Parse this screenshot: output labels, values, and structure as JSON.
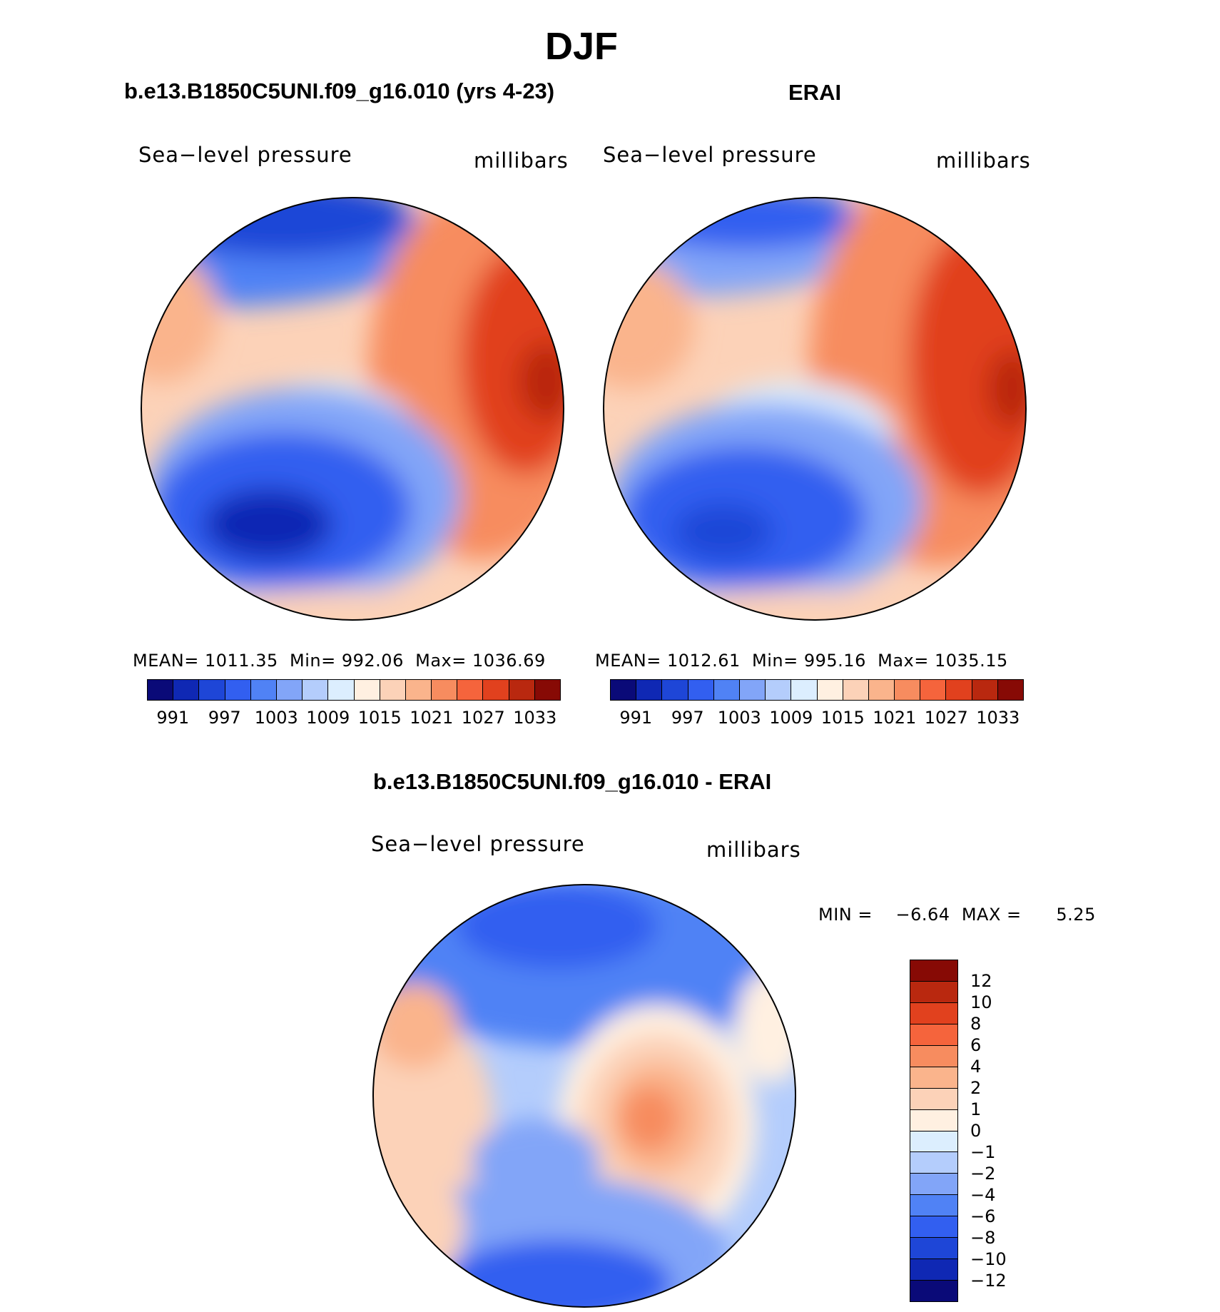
{
  "title": "DJF",
  "palette": [
    "#0a0a78",
    "#0f28b4",
    "#1e46d7",
    "#325ff0",
    "#5082f5",
    "#82a5f8",
    "#b4cdfc",
    "#dceefe",
    "#fff0e1",
    "#fcd2b8",
    "#fab48c",
    "#f78c5f",
    "#f5643c",
    "#e1411e",
    "#b9280f",
    "#870a05"
  ],
  "panels": [
    {
      "title": "b.e13.B1850C5UNI.f09_g16.010 (yrs 4-23)",
      "left_label": "Sea−level pressure",
      "right_label": "millibars",
      "stats": {
        "mean_label": "MEAN=",
        "mean": "1011.35",
        "min_label": "Min=",
        "min": "992.06",
        "max_label": "Max=",
        "max": "1036.69"
      }
    },
    {
      "title": "ERAI",
      "left_label": "Sea−level pressure",
      "right_label": "millibars",
      "stats": {
        "mean_label": "MEAN=",
        "mean": "1012.61",
        "min_label": "Min=",
        "min": "995.16",
        "max_label": "Max=",
        "max": "1035.15"
      }
    }
  ],
  "colorbar_ticks": [
    "991",
    "997",
    "1003",
    "1009",
    "1015",
    "1021",
    "1027",
    "1033"
  ],
  "diff": {
    "title": "b.e13.B1850C5UNI.f09_g16.010 - ERAI",
    "left_label": "Sea−level pressure",
    "right_label": "millibars",
    "minmax": {
      "min_label": "MIN =",
      "min": "−6.64",
      "max_label": "MAX =",
      "max": "5.25"
    },
    "ticks": [
      "12",
      "10",
      "8",
      "6",
      "4",
      "2",
      "1",
      "0",
      "−1",
      "−2",
      "−4",
      "−6",
      "−8",
      "−10",
      "−12"
    ]
  }
}
